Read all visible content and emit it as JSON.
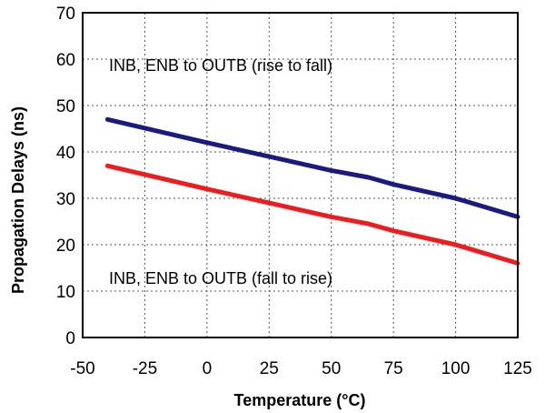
{
  "chart_data": {
    "type": "line",
    "title": "",
    "xlabel": "Temperature (°C)",
    "ylabel": "Propagation Delays (ns)",
    "xlim": [
      -50,
      125
    ],
    "ylim": [
      0,
      70
    ],
    "x_ticks": [
      -50,
      -25,
      0,
      25,
      50,
      75,
      100,
      125
    ],
    "y_ticks": [
      0,
      10,
      20,
      30,
      40,
      50,
      60,
      70
    ],
    "x_tick_labels": [
      "-50",
      "-25",
      "0",
      "25",
      "50",
      "75",
      "100",
      "125"
    ],
    "y_tick_labels": [
      "0",
      "10",
      "20",
      "30",
      "40",
      "50",
      "60",
      "70"
    ],
    "grid": true,
    "series": [
      {
        "name": "INB, ENB to OUTB (rise to fall)",
        "color": "#1a1a80",
        "x": [
          -40,
          0,
          25,
          50,
          65,
          75,
          100,
          125
        ],
        "y": [
          47,
          42,
          39,
          36,
          34.5,
          33,
          30,
          26
        ]
      },
      {
        "name": "INB, ENB to OUTB (fall to rise)",
        "color": "#ee1c1c",
        "x": [
          -40,
          0,
          25,
          50,
          65,
          75,
          100,
          125
        ],
        "y": [
          37,
          32,
          29,
          26,
          24.5,
          23,
          20,
          16
        ]
      }
    ],
    "annotations": [
      {
        "text": "INB, ENB to OUTB (rise to fall)"
      },
      {
        "text": "INB, ENB to OUTB (fall to rise)"
      }
    ]
  }
}
